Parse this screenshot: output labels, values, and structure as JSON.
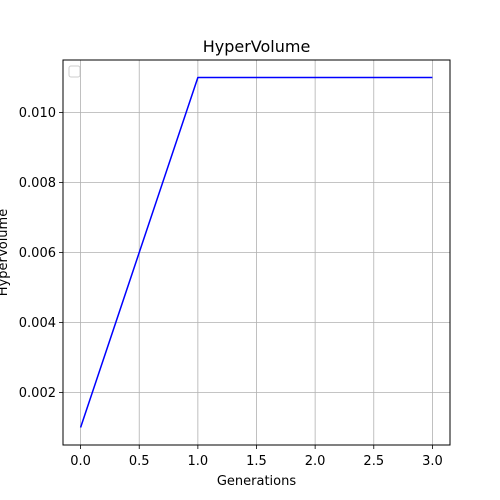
{
  "chart_data": {
    "type": "line",
    "title": "HyperVolume",
    "xlabel": "Generations",
    "ylabel": "HyperVolume",
    "x": [
      0,
      1,
      2,
      3
    ],
    "series": [
      {
        "values": [
          0.001,
          0.011,
          0.011,
          0.011
        ],
        "color": "#0000ff"
      }
    ],
    "xlim": [
      -0.15,
      3.15
    ],
    "ylim": [
      0.0005,
      0.0115
    ],
    "xticks": [
      0.0,
      0.5,
      1.0,
      1.5,
      2.0,
      2.5,
      3.0
    ],
    "xtick_labels": [
      "0.0",
      "0.5",
      "1.0",
      "1.5",
      "2.0",
      "2.5",
      "3.0"
    ],
    "yticks": [
      0.002,
      0.004,
      0.006,
      0.008,
      0.01
    ],
    "ytick_labels": [
      "0.002",
      "0.004",
      "0.006",
      "0.008",
      "0.010"
    ],
    "grid": true,
    "legend": {
      "placement": "upper-left",
      "entries": []
    }
  }
}
